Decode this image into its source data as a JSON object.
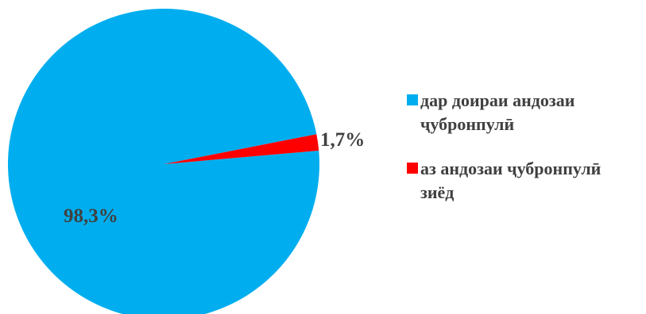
{
  "chart_data": {
    "type": "pie",
    "slices": [
      {
        "label": "дар доираи андозаи ҷубронпулӣ",
        "legend_lines": [
          "дар доираи андозаи",
          "ҷубронпулӣ"
        ],
        "value": 98.3,
        "value_label": "98,3%",
        "color": "#00AEEF"
      },
      {
        "label": "аз андозаи ҷубронпулӣ зиёд",
        "legend_lines": [
          "аз андозаи ҷубронпулӣ",
          "зиёд"
        ],
        "value": 1.7,
        "value_label": "1,7%",
        "color": "#FF0000"
      }
    ],
    "legend_position": "right"
  }
}
